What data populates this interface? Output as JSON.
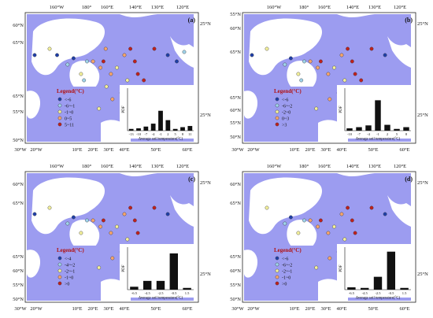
{
  "panels": [
    {
      "tag": "(a)",
      "top_labels": [
        "160°W",
        "180°",
        "160°E",
        "140°E",
        "130°E",
        "120°E"
      ],
      "right_labels": [
        "25°N",
        "25°N"
      ],
      "left_labels": [
        "60°N",
        "65°N",
        "65°N",
        "55°N",
        "50°N"
      ],
      "bottom_labels": [
        "30°W",
        "20°W",
        "10°E",
        "20°E",
        "30°E",
        "40°E",
        "50°E",
        "60°E"
      ],
      "legend": {
        "title": "Legend(°C)",
        "items": [
          {
            "label": "<-6",
            "color": "#1f3fa8"
          },
          {
            "label": "-6~-1",
            "color": "#9fd3ea"
          },
          {
            "label": "-1~0",
            "color": "#f3f09a"
          },
          {
            "label": "0~5",
            "color": "#f6a56b"
          },
          {
            "label": "5~11",
            "color": "#c0201c"
          }
        ]
      },
      "hist": {
        "ylabel": "PDF",
        "xlabel": "Average soil temperature(°C)",
        "categories": [
          "-13",
          "-10",
          "-7",
          "-4",
          "-1",
          "2",
          "5",
          "8",
          "11"
        ],
        "values": [
          0.03,
          0.04,
          0.07,
          0.12,
          0.34,
          0.18,
          0.03,
          0.06,
          0.08
        ]
      },
      "stations": [
        {
          "lon": 168,
          "lat": 63,
          "cls": 0
        },
        {
          "lon": 176,
          "lat": 61,
          "cls": 1
        },
        {
          "lon": -170,
          "lat": 64,
          "cls": 0
        },
        {
          "lon": -160,
          "lat": 66,
          "cls": 2
        },
        {
          "lon": 158,
          "lat": 58,
          "cls": 2
        },
        {
          "lon": 150,
          "lat": 62,
          "cls": 1
        },
        {
          "lon": 142,
          "lat": 62,
          "cls": 3
        },
        {
          "lon": 132,
          "lat": 60,
          "cls": 3
        },
        {
          "lon": 128,
          "lat": 62,
          "cls": 4
        },
        {
          "lon": 125,
          "lat": 66,
          "cls": 3
        },
        {
          "lon": 118,
          "lat": 58,
          "cls": 3
        },
        {
          "lon": 110,
          "lat": 60,
          "cls": 2
        },
        {
          "lon": 100,
          "lat": 64,
          "cls": 3
        },
        {
          "lon": 92,
          "lat": 66,
          "cls": 4
        },
        {
          "lon": 86,
          "lat": 62,
          "cls": 4
        },
        {
          "lon": 82,
          "lat": 58,
          "cls": 4
        },
        {
          "lon": 96,
          "lat": 56,
          "cls": 2
        },
        {
          "lon": 104,
          "lat": 52,
          "cls": 2
        },
        {
          "lon": 116,
          "lat": 50,
          "cls": 3
        },
        {
          "lon": 124,
          "lat": 54,
          "cls": 2
        },
        {
          "lon": 60,
          "lat": 66,
          "cls": 4
        },
        {
          "lon": 42,
          "lat": 64,
          "cls": 0
        },
        {
          "lon": 88,
          "lat": 48,
          "cls": 2
        },
        {
          "lon": 134,
          "lat": 47,
          "cls": 2
        },
        {
          "lon": 30,
          "lat": 62,
          "cls": 0
        },
        {
          "lon": 20,
          "lat": 65,
          "cls": 1
        },
        {
          "lon": -20,
          "lat": 64,
          "cls": 0
        },
        {
          "lon": 74,
          "lat": 56,
          "cls": 4
        },
        {
          "lon": 154,
          "lat": 56,
          "cls": 1
        }
      ]
    },
    {
      "tag": "(b)",
      "top_labels": [
        "160°W",
        "180°",
        "160°E",
        "140°E",
        "130°E",
        "120°E"
      ],
      "right_labels": [
        "25°N",
        "25°N"
      ],
      "left_labels": [
        "55°N",
        "60°N",
        "65°N",
        "65°N",
        "60°N",
        "55°N",
        "50°N"
      ],
      "bottom_labels": [
        "30°W",
        "20°W",
        "10°E",
        "20°E",
        "30°E",
        "40°E",
        "50°E",
        "60°E"
      ],
      "legend": {
        "title": "Legend(°C)",
        "items": [
          {
            "label": "<-6",
            "color": "#1f3fa8"
          },
          {
            "label": "-6~-2",
            "color": "#9fd3ea"
          },
          {
            "label": "-2~0",
            "color": "#f3f09a"
          },
          {
            "label": "0~3",
            "color": "#f6a56b"
          },
          {
            "label": ">3",
            "color": "#c0201c"
          }
        ]
      },
      "hist": {
        "ylabel": "PDF",
        "xlabel": "Average soil temperature(°C)",
        "categories": [
          "-10",
          "-7",
          "-4",
          "-1",
          "2",
          "5",
          "8"
        ],
        "values": [
          0.04,
          0.06,
          0.09,
          0.52,
          0.1,
          0.03,
          0.06
        ]
      },
      "stations": [
        {
          "lon": 168,
          "lat": 63,
          "cls": 0
        },
        {
          "lon": 176,
          "lat": 61,
          "cls": 1
        },
        {
          "lon": -160,
          "lat": 66,
          "cls": 2
        },
        {
          "lon": 158,
          "lat": 58,
          "cls": 2
        },
        {
          "lon": 150,
          "lat": 62,
          "cls": 1
        },
        {
          "lon": 142,
          "lat": 62,
          "cls": 3
        },
        {
          "lon": 132,
          "lat": 60,
          "cls": 3
        },
        {
          "lon": 128,
          "lat": 62,
          "cls": 4
        },
        {
          "lon": 118,
          "lat": 58,
          "cls": 3
        },
        {
          "lon": 110,
          "lat": 60,
          "cls": 2
        },
        {
          "lon": 100,
          "lat": 64,
          "cls": 3
        },
        {
          "lon": 92,
          "lat": 66,
          "cls": 4
        },
        {
          "lon": 86,
          "lat": 62,
          "cls": 4
        },
        {
          "lon": 82,
          "lat": 58,
          "cls": 4
        },
        {
          "lon": 96,
          "lat": 56,
          "cls": 2
        },
        {
          "lon": 104,
          "lat": 52,
          "cls": 2
        },
        {
          "lon": 116,
          "lat": 50,
          "cls": 3
        },
        {
          "lon": 60,
          "lat": 66,
          "cls": 4
        },
        {
          "lon": 42,
          "lat": 64,
          "cls": 0
        },
        {
          "lon": 134,
          "lat": 47,
          "cls": 2
        },
        {
          "lon": -20,
          "lat": 64,
          "cls": 0
        },
        {
          "lon": 74,
          "lat": 56,
          "cls": 4
        },
        {
          "lon": 154,
          "lat": 56,
          "cls": 1
        }
      ]
    },
    {
      "tag": "(c)",
      "top_labels": [
        "160°W",
        "180°",
        "160°E",
        "140°E",
        "130°E",
        "120°E"
      ],
      "right_labels": [
        "25°N",
        "25°N"
      ],
      "left_labels": [
        "60°N",
        "65°N",
        "65°N",
        "60°N",
        "55°N",
        "50°N"
      ],
      "bottom_labels": [
        "30°W",
        "20°W",
        "10°E",
        "20°E",
        "30°E",
        "40°E",
        "50°E",
        "60°E"
      ],
      "legend": {
        "title": "Legend(°C)",
        "items": [
          {
            "label": "<-4",
            "color": "#1f3fa8"
          },
          {
            "label": "-4~-2",
            "color": "#9fd3ea"
          },
          {
            "label": "-2~-1",
            "color": "#f3f09a"
          },
          {
            "label": "-1~0",
            "color": "#f6a56b"
          },
          {
            "label": ">0",
            "color": "#c0201c"
          }
        ]
      },
      "hist": {
        "ylabel": "PDF",
        "xlabel": "Average soil temperature(°C)",
        "categories": [
          "-6.5",
          "-4.5",
          "-2.5",
          "-0.5",
          "1.5"
        ],
        "values": [
          0.05,
          0.15,
          0.15,
          0.62,
          0.03
        ]
      },
      "stations": [
        {
          "lon": 168,
          "lat": 63,
          "cls": 0
        },
        {
          "lon": 176,
          "lat": 61,
          "cls": 1
        },
        {
          "lon": -160,
          "lat": 66,
          "cls": 2
        },
        {
          "lon": 158,
          "lat": 58,
          "cls": 2
        },
        {
          "lon": 150,
          "lat": 62,
          "cls": 1
        },
        {
          "lon": 142,
          "lat": 62,
          "cls": 3
        },
        {
          "lon": 132,
          "lat": 60,
          "cls": 3
        },
        {
          "lon": 128,
          "lat": 62,
          "cls": 4
        },
        {
          "lon": 118,
          "lat": 58,
          "cls": 3
        },
        {
          "lon": 110,
          "lat": 60,
          "cls": 2
        },
        {
          "lon": 100,
          "lat": 64,
          "cls": 3
        },
        {
          "lon": 92,
          "lat": 66,
          "cls": 4
        },
        {
          "lon": 86,
          "lat": 62,
          "cls": 4
        },
        {
          "lon": 82,
          "lat": 58,
          "cls": 4
        },
        {
          "lon": 96,
          "lat": 56,
          "cls": 2
        },
        {
          "lon": 104,
          "lat": 52,
          "cls": 2
        },
        {
          "lon": 116,
          "lat": 50,
          "cls": 3
        },
        {
          "lon": 60,
          "lat": 66,
          "cls": 4
        },
        {
          "lon": 42,
          "lat": 64,
          "cls": 0
        },
        {
          "lon": 134,
          "lat": 47,
          "cls": 2
        },
        {
          "lon": -20,
          "lat": 64,
          "cls": 0
        }
      ]
    },
    {
      "tag": "(d)",
      "top_labels": [
        "160°W",
        "180°",
        "160°E",
        "140°E",
        "130°E",
        "120°E"
      ],
      "right_labels": [
        "25°N",
        "25°N"
      ],
      "left_labels": [
        "60°N",
        "65°N",
        "65°N",
        "60°N",
        "55°N",
        "50°N"
      ],
      "bottom_labels": [
        "30°W",
        "20°W",
        "10°E",
        "20°E",
        "30°E",
        "40°E",
        "50°E",
        "60°E"
      ],
      "legend": {
        "title": "Legend(°C)",
        "items": [
          {
            "label": "<-6",
            "color": "#1f3fa8"
          },
          {
            "label": "-6~-2",
            "color": "#9fd3ea"
          },
          {
            "label": "-2~-1",
            "color": "#f3f09a"
          },
          {
            "label": "-1~0",
            "color": "#f6a56b"
          },
          {
            "label": ">0",
            "color": "#c0201c"
          }
        ]
      },
      "hist": {
        "ylabel": "PDF",
        "xlabel": "Average soil temperature(°C)",
        "categories": [
          "-6.5",
          "-4.5",
          "-2.5",
          "-0.5",
          "1.5"
        ],
        "values": [
          0.04,
          0.03,
          0.22,
          0.65,
          0.03
        ]
      },
      "stations": [
        {
          "lon": 168,
          "lat": 63,
          "cls": 0
        },
        {
          "lon": 176,
          "lat": 61,
          "cls": 1
        },
        {
          "lon": -160,
          "lat": 66,
          "cls": 2
        },
        {
          "lon": 158,
          "lat": 58,
          "cls": 2
        },
        {
          "lon": 150,
          "lat": 62,
          "cls": 1
        },
        {
          "lon": 142,
          "lat": 62,
          "cls": 3
        },
        {
          "lon": 132,
          "lat": 60,
          "cls": 3
        },
        {
          "lon": 128,
          "lat": 62,
          "cls": 4
        },
        {
          "lon": 118,
          "lat": 58,
          "cls": 3
        },
        {
          "lon": 110,
          "lat": 60,
          "cls": 2
        },
        {
          "lon": 100,
          "lat": 64,
          "cls": 3
        },
        {
          "lon": 92,
          "lat": 66,
          "cls": 4
        },
        {
          "lon": 86,
          "lat": 62,
          "cls": 4
        },
        {
          "lon": 82,
          "lat": 58,
          "cls": 4
        },
        {
          "lon": 96,
          "lat": 56,
          "cls": 2
        },
        {
          "lon": 104,
          "lat": 52,
          "cls": 2
        },
        {
          "lon": 116,
          "lat": 50,
          "cls": 3
        },
        {
          "lon": 60,
          "lat": 66,
          "cls": 4
        },
        {
          "lon": 42,
          "lat": 64,
          "cls": 0
        },
        {
          "lon": 134,
          "lat": 47,
          "cls": 2
        }
      ]
    }
  ],
  "colors": {
    "land": "#9c9cf0",
    "water": "#ffffff",
    "frame": "#222222",
    "bar": "#111111"
  }
}
